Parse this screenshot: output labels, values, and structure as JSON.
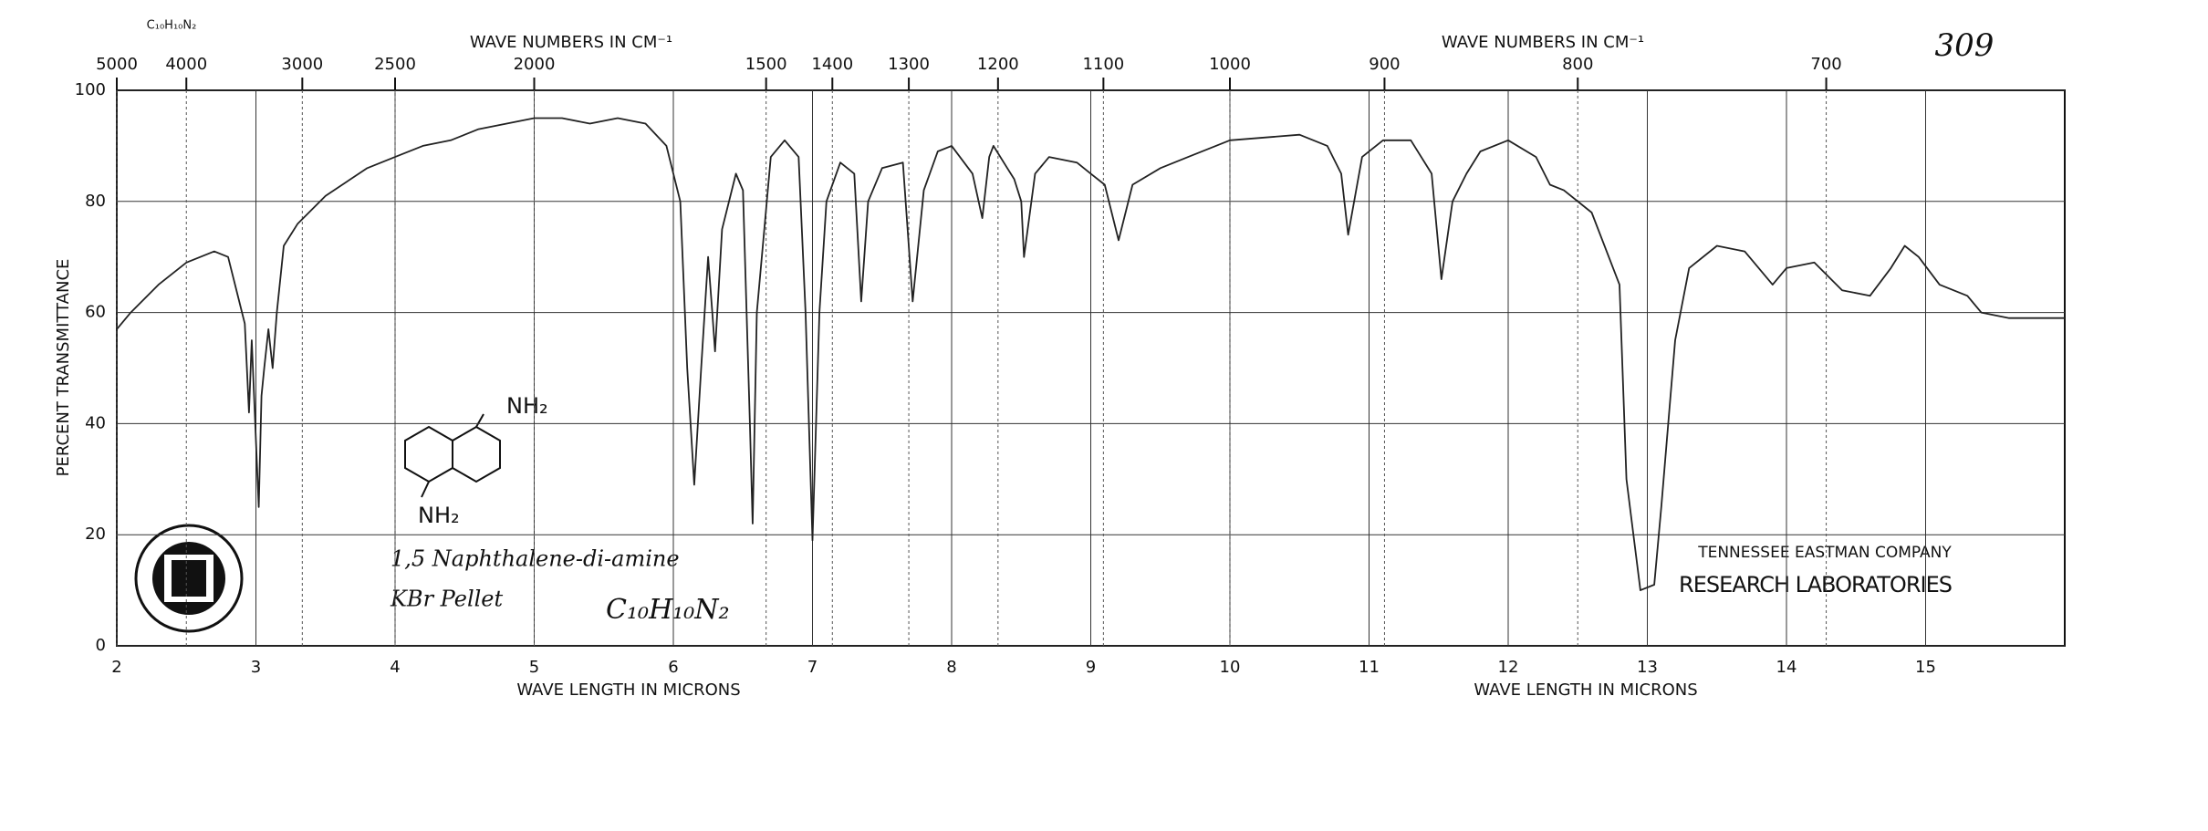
{
  "chart_data": {
    "type": "line",
    "page_number": "309",
    "formula_small": "C₁₀H₁₀N₂",
    "top_axis_label": "WAVE NUMBERS IN CM⁻¹",
    "top_axis_label_2": "WAVE NUMBERS IN CM⁻¹",
    "xlabel": "WAVE LENGTH IN MICRONS",
    "xlabel_2": "WAVE LENGTH IN MICRONS",
    "ylabel": "PERCENT TRANSMITTANCE",
    "compound": "1,5 Naphthalene-di-amine",
    "sample": "KBr Pellet",
    "formula": "C₁₀H₁₀N₂",
    "substituent_top": "NH₂",
    "substituent_bottom": "NH₂",
    "company": "TENNESSEE EASTMAN COMPANY",
    "lab": "RESEARCH LABORATORIES",
    "xlim": [
      2,
      16
    ],
    "ylim": [
      0,
      100
    ],
    "xticks": [
      2,
      3,
      4,
      5,
      6,
      7,
      8,
      9,
      10,
      11,
      12,
      13,
      14,
      15
    ],
    "yticks": [
      0,
      20,
      40,
      60,
      80,
      100
    ],
    "x2ticks": [
      5000,
      4000,
      3000,
      2500,
      2000,
      1500,
      1400,
      1300,
      1200,
      1100,
      1000,
      900,
      800,
      700
    ],
    "x2_scale": "reciprocal",
    "grid": true,
    "color": "#222222",
    "x": [
      2.0,
      2.1,
      2.3,
      2.5,
      2.7,
      2.8,
      2.88,
      2.92,
      2.95,
      2.97,
      3.0,
      3.02,
      3.04,
      3.06,
      3.09,
      3.12,
      3.15,
      3.2,
      3.3,
      3.5,
      3.8,
      4.0,
      4.2,
      4.4,
      4.6,
      5.0,
      5.2,
      5.4,
      5.6,
      5.8,
      5.95,
      6.05,
      6.1,
      6.15,
      6.2,
      6.25,
      6.28,
      6.3,
      6.35,
      6.45,
      6.5,
      6.55,
      6.57,
      6.6,
      6.7,
      6.8,
      6.9,
      6.95,
      7.0,
      7.05,
      7.1,
      7.2,
      7.3,
      7.35,
      7.4,
      7.5,
      7.65,
      7.72,
      7.8,
      7.9,
      8.0,
      8.15,
      8.22,
      8.27,
      8.3,
      8.4,
      8.45,
      8.5,
      8.52,
      8.6,
      8.7,
      8.9,
      9.0,
      9.1,
      9.2,
      9.3,
      9.5,
      9.7,
      10.0,
      10.5,
      10.7,
      10.8,
      10.85,
      10.95,
      11.1,
      11.3,
      11.45,
      11.52,
      11.6,
      11.7,
      11.8,
      12.0,
      12.2,
      12.3,
      12.4,
      12.6,
      12.8,
      12.85,
      12.95,
      13.05,
      13.1,
      13.2,
      13.3,
      13.5,
      13.7,
      13.9,
      14.0,
      14.2,
      14.4,
      14.6,
      14.75,
      14.85,
      14.95,
      15.1,
      15.3,
      15.4,
      15.6,
      16.0
    ],
    "values": [
      57,
      60,
      65,
      69,
      71,
      70,
      62,
      58,
      42,
      55,
      37,
      25,
      45,
      50,
      57,
      50,
      60,
      72,
      76,
      81,
      86,
      88,
      90,
      91,
      93,
      95,
      95,
      94,
      95,
      94,
      90,
      80,
      50,
      29,
      50,
      70,
      60,
      53,
      75,
      85,
      82,
      40,
      22,
      60,
      88,
      91,
      88,
      60,
      19,
      60,
      80,
      87,
      85,
      62,
      80,
      86,
      87,
      62,
      82,
      89,
      90,
      85,
      77,
      88,
      90,
      86,
      84,
      80,
      70,
      85,
      88,
      87,
      85,
      83,
      73,
      83,
      86,
      88,
      91,
      92,
      90,
      85,
      74,
      88,
      91,
      91,
      85,
      66,
      80,
      85,
      89,
      91,
      88,
      83,
      82,
      78,
      65,
      30,
      10,
      11,
      25,
      55,
      68,
      72,
      71,
      65,
      68,
      69,
      64,
      63,
      68,
      72,
      70,
      65,
      63,
      60,
      59,
      59
    ]
  }
}
